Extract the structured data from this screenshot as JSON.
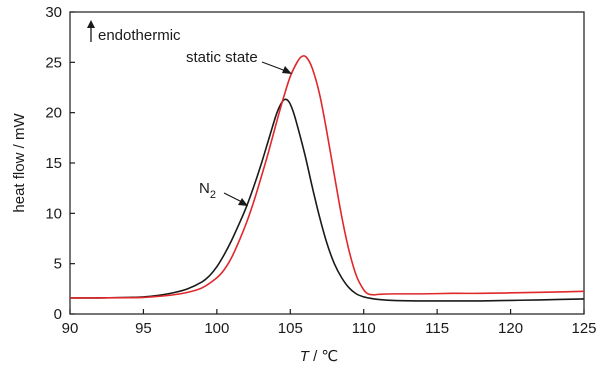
{
  "chart_data": {
    "type": "line",
    "title": "",
    "xlabel_var": "T",
    "xlabel_unit": " / ℃",
    "ylabel": "heat flow / mW",
    "xlim": [
      90,
      125
    ],
    "ylim": [
      0,
      30
    ],
    "xticks": [
      90,
      95,
      100,
      105,
      110,
      115,
      120,
      125
    ],
    "yticks": [
      0,
      5,
      10,
      15,
      20,
      25,
      30
    ],
    "grid": false,
    "legend": "none",
    "annotations": {
      "endothermic": "endothermic",
      "static": "static state",
      "n2_main": "N",
      "n2_sub": "2"
    },
    "series": [
      {
        "name": "N2",
        "color": "#1a1a1a",
        "x": [
          90,
          92,
          94,
          95,
          96,
          97,
          98,
          99,
          99.5,
          100,
          100.5,
          101,
          101.5,
          102,
          102.5,
          103,
          103.5,
          104,
          104.3,
          104.6,
          104.9,
          105.2,
          105.5,
          106,
          106.5,
          107,
          107.5,
          108,
          108.5,
          109,
          109.5,
          110,
          110.5,
          111,
          112,
          114,
          116,
          118,
          120,
          122,
          125
        ],
        "y": [
          1.6,
          1.6,
          1.65,
          1.7,
          1.85,
          2.1,
          2.5,
          3.2,
          3.8,
          4.7,
          5.9,
          7.3,
          8.9,
          10.6,
          12.6,
          14.8,
          17.2,
          19.6,
          20.7,
          21.3,
          21.1,
          20.1,
          18.6,
          15.8,
          12.6,
          9.6,
          7.0,
          5.0,
          3.6,
          2.6,
          2.0,
          1.7,
          1.55,
          1.45,
          1.35,
          1.3,
          1.3,
          1.3,
          1.35,
          1.4,
          1.5
        ]
      },
      {
        "name": "static state",
        "color": "#e0282b",
        "x": [
          90,
          92,
          94,
          95,
          96,
          97,
          98,
          99,
          100,
          100.5,
          101,
          101.5,
          102,
          102.5,
          103,
          103.5,
          104,
          104.5,
          105,
          105.5,
          105.8,
          106.1,
          106.5,
          107,
          107.5,
          108,
          108.5,
          109,
          109.5,
          110,
          110.3,
          110.7,
          111,
          112,
          114,
          116,
          118,
          120,
          122,
          125
        ],
        "y": [
          1.6,
          1.6,
          1.62,
          1.65,
          1.75,
          1.9,
          2.15,
          2.6,
          3.6,
          4.4,
          5.6,
          7.2,
          9.0,
          11.1,
          13.5,
          16.0,
          18.7,
          21.3,
          23.6,
          25.1,
          25.6,
          25.5,
          24.4,
          21.8,
          18.0,
          13.8,
          9.7,
          6.3,
          3.8,
          2.4,
          2.0,
          1.9,
          1.95,
          2.0,
          2.0,
          2.05,
          2.05,
          2.1,
          2.15,
          2.25
        ]
      }
    ]
  }
}
